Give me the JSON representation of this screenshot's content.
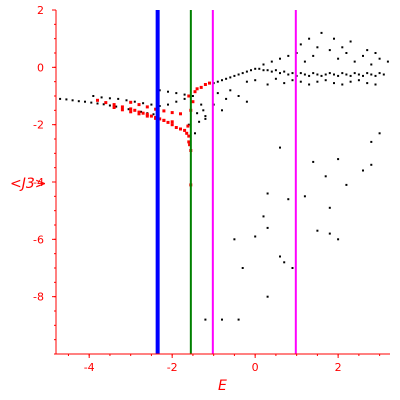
{
  "chart_data": {
    "type": "scatter",
    "xlabel": "E",
    "ylabel": "<J3>",
    "xlim": [
      -4.8,
      3.25
    ],
    "ylim": [
      -10.0,
      2.0
    ],
    "x_ticks": [
      -4,
      -2,
      0,
      2
    ],
    "y_ticks": [
      2,
      0,
      -2,
      -4,
      -6,
      -8
    ],
    "grid": false,
    "colors": {
      "axes": "#ff0000",
      "black_points": "#000000",
      "red_points": "#ff0000",
      "line_blue": "#0000ff",
      "line_green": "#008000",
      "line_magenta": "#ff00ff"
    },
    "vertical_lines": [
      {
        "x": -2.35,
        "color": "#0000ff"
      },
      {
        "x": -1.55,
        "color": "#008000"
      },
      {
        "x": -1.02,
        "color": "#ff00ff"
      },
      {
        "x": 0.98,
        "color": "#ff00ff"
      }
    ],
    "series": [
      {
        "points": [
          [
            -4.7,
            -1.1
          ],
          [
            -4.55,
            -1.12
          ],
          [
            -4.4,
            -1.15
          ],
          [
            -4.25,
            -1.18
          ],
          [
            -4.1,
            -1.2
          ],
          [
            -3.95,
            -1.23
          ],
          [
            -3.8,
            -1.26
          ],
          [
            -3.65,
            -1.29
          ],
          [
            -3.5,
            -1.33
          ],
          [
            -3.35,
            -1.37
          ],
          [
            -3.2,
            -1.41
          ],
          [
            -3.05,
            -1.46
          ],
          [
            -2.9,
            -1.5
          ],
          [
            -2.75,
            -1.55
          ],
          [
            -2.6,
            -1.6
          ],
          [
            -2.45,
            -1.64
          ],
          [
            -3.9,
            -1.0
          ],
          [
            -3.7,
            -1.05
          ],
          [
            -3.5,
            -1.08
          ],
          [
            -3.3,
            -1.1
          ],
          [
            -3.1,
            -1.15
          ],
          [
            -2.9,
            -1.2
          ],
          [
            -2.7,
            -1.25
          ],
          [
            -2.5,
            -1.3
          ],
          [
            -2.3,
            -1.35
          ],
          [
            -2.1,
            -1.3
          ],
          [
            -1.9,
            -1.2
          ],
          [
            -1.7,
            -1.1
          ],
          [
            -1.5,
            -1.0
          ],
          [
            -2.3,
            -0.8
          ],
          [
            -2.1,
            -0.85
          ],
          [
            -1.9,
            -0.9
          ],
          [
            -1.7,
            -0.95
          ],
          [
            -1.3,
            -1.3
          ],
          [
            -1.4,
            -1.6
          ],
          [
            -1.2,
            -1.8
          ],
          [
            -1.6,
            -2.0
          ],
          [
            -1.45,
            -2.3
          ],
          [
            -1.35,
            -1.9
          ],
          [
            -1.25,
            -1.5
          ],
          [
            -1.0,
            -0.55
          ],
          [
            -0.9,
            -0.5
          ],
          [
            -0.8,
            -0.45
          ],
          [
            -0.7,
            -0.4
          ],
          [
            -0.6,
            -0.35
          ],
          [
            -0.5,
            -0.3
          ],
          [
            -0.4,
            -0.25
          ],
          [
            -0.3,
            -0.2
          ],
          [
            -0.2,
            -0.15
          ],
          [
            -0.1,
            -0.1
          ],
          [
            0.0,
            -0.05
          ],
          [
            0.1,
            -0.05
          ],
          [
            0.2,
            -0.1
          ],
          [
            0.3,
            -0.1
          ],
          [
            0.4,
            -0.15
          ],
          [
            0.5,
            -0.1
          ],
          [
            0.6,
            -0.2
          ],
          [
            0.7,
            -0.15
          ],
          [
            0.8,
            -0.25
          ],
          [
            0.9,
            -0.2
          ],
          [
            1.0,
            -0.3
          ],
          [
            1.1,
            -0.2
          ],
          [
            1.2,
            -0.25
          ],
          [
            1.3,
            -0.3
          ],
          [
            1.4,
            -0.2
          ],
          [
            1.5,
            -0.25
          ],
          [
            1.6,
            -0.3
          ],
          [
            1.7,
            -0.25
          ],
          [
            1.8,
            -0.2
          ],
          [
            1.9,
            -0.25
          ],
          [
            2.0,
            -0.3
          ],
          [
            2.1,
            -0.2
          ],
          [
            2.2,
            -0.25
          ],
          [
            2.3,
            -0.3
          ],
          [
            2.4,
            -0.2
          ],
          [
            2.5,
            -0.25
          ],
          [
            2.6,
            -0.3
          ],
          [
            2.7,
            -0.2
          ],
          [
            2.8,
            -0.25
          ],
          [
            2.9,
            -0.3
          ],
          [
            3.0,
            -0.2
          ],
          [
            3.1,
            -0.25
          ],
          [
            -0.2,
            -0.5
          ],
          [
            0.0,
            -0.45
          ],
          [
            0.3,
            -0.6
          ],
          [
            0.5,
            -0.4
          ],
          [
            0.7,
            -0.55
          ],
          [
            0.9,
            -0.45
          ],
          [
            1.1,
            -0.5
          ],
          [
            1.3,
            -0.6
          ],
          [
            1.5,
            -0.5
          ],
          [
            1.7,
            -0.45
          ],
          [
            1.9,
            -0.55
          ],
          [
            2.1,
            -0.6
          ],
          [
            2.3,
            -0.5
          ],
          [
            2.5,
            -0.45
          ],
          [
            2.7,
            -0.55
          ],
          [
            2.9,
            -0.6
          ],
          [
            0.2,
            0.1
          ],
          [
            0.4,
            0.2
          ],
          [
            0.6,
            0.3
          ],
          [
            0.8,
            0.4
          ],
          [
            1.0,
            0.5
          ],
          [
            1.1,
            0.8
          ],
          [
            1.3,
            1.0
          ],
          [
            1.5,
            0.7
          ],
          [
            1.6,
            1.2
          ],
          [
            1.2,
            0.2
          ],
          [
            1.4,
            0.4
          ],
          [
            1.8,
            0.6
          ],
          [
            2.0,
            0.3
          ],
          [
            2.2,
            0.5
          ],
          [
            2.4,
            0.2
          ],
          [
            2.6,
            0.4
          ],
          [
            2.8,
            0.1
          ],
          [
            3.0,
            0.3
          ],
          [
            3.2,
            0.2
          ],
          [
            2.3,
            0.9
          ],
          [
            2.1,
            0.7
          ],
          [
            1.9,
            1.0
          ],
          [
            2.7,
            0.6
          ],
          [
            2.9,
            0.5
          ],
          [
            -0.9,
            -0.9
          ],
          [
            -0.7,
            -1.1
          ],
          [
            -0.6,
            -0.8
          ],
          [
            -0.4,
            -1.0
          ],
          [
            -0.2,
            -1.2
          ],
          [
            -1.0,
            -1.3
          ],
          [
            -0.8,
            -1.5
          ],
          [
            -1.2,
            -1.7
          ],
          [
            0.6,
            -2.8
          ],
          [
            1.4,
            -3.3
          ],
          [
            1.7,
            -3.8
          ],
          [
            2.0,
            -3.2
          ],
          [
            2.2,
            -4.1
          ],
          [
            2.6,
            -3.6
          ],
          [
            2.8,
            -3.4
          ],
          [
            0.3,
            -4.4
          ],
          [
            0.8,
            -4.6
          ],
          [
            1.2,
            -4.5
          ],
          [
            0.2,
            -5.2
          ],
          [
            0.3,
            -5.6
          ],
          [
            0.0,
            -5.9
          ],
          [
            -0.5,
            -6.0
          ],
          [
            0.6,
            -6.6
          ],
          [
            1.5,
            -5.7
          ],
          [
            1.8,
            -5.8
          ],
          [
            2.0,
            -6.0
          ],
          [
            -0.3,
            -7.0
          ],
          [
            0.9,
            -7.0
          ],
          [
            0.7,
            -6.8
          ],
          [
            -0.8,
            -8.8
          ],
          [
            -0.4,
            -8.8
          ],
          [
            -1.2,
            -8.8
          ],
          [
            0.3,
            -8.0
          ],
          [
            1.8,
            -4.9
          ],
          [
            2.8,
            -2.6
          ],
          [
            3.0,
            -2.3
          ]
        ]
      },
      {
        "points": [
          [
            -3.8,
            -1.15
          ],
          [
            -3.6,
            -1.23
          ],
          [
            -3.4,
            -1.3
          ],
          [
            -3.2,
            -1.38
          ],
          [
            -3.0,
            -1.45
          ],
          [
            -2.9,
            -1.5
          ],
          [
            -2.8,
            -1.56
          ],
          [
            -2.7,
            -1.6
          ],
          [
            -2.6,
            -1.64
          ],
          [
            -2.5,
            -1.7
          ],
          [
            -2.4,
            -1.75
          ],
          [
            -2.3,
            -1.8
          ],
          [
            -2.2,
            -1.85
          ],
          [
            -2.1,
            -1.92
          ],
          [
            -2.0,
            -2.0
          ],
          [
            -1.9,
            -2.1
          ],
          [
            -1.8,
            -2.15
          ],
          [
            -1.7,
            -2.2
          ],
          [
            -1.65,
            -2.3
          ],
          [
            -1.6,
            -2.4
          ],
          [
            -3.4,
            -1.4
          ],
          [
            -3.2,
            -1.48
          ],
          [
            -3.0,
            -1.55
          ],
          [
            -2.8,
            -1.62
          ],
          [
            -2.6,
            -1.7
          ],
          [
            -2.4,
            -1.78
          ],
          [
            -2.2,
            -1.85
          ],
          [
            -2.0,
            -1.9
          ],
          [
            -3.0,
            -1.22
          ],
          [
            -2.8,
            -1.3
          ],
          [
            -2.6,
            -1.38
          ],
          [
            -2.4,
            -1.46
          ],
          [
            -2.2,
            -1.52
          ],
          [
            -2.0,
            -1.58
          ],
          [
            -1.8,
            -1.62
          ],
          [
            -1.6,
            -1.0
          ],
          [
            -1.5,
            -1.2
          ],
          [
            -1.45,
            -0.85
          ],
          [
            -1.4,
            -0.75
          ],
          [
            -1.3,
            -0.7
          ],
          [
            -1.2,
            -0.6
          ],
          [
            -1.1,
            -0.55
          ],
          [
            -1.55,
            -1.5
          ],
          [
            -1.6,
            -2.6
          ],
          [
            -1.55,
            -2.9
          ],
          [
            -1.58,
            -2.7
          ],
          [
            -1.55,
            -4.1
          ],
          [
            -1.62,
            -2.05
          ]
        ]
      }
    ]
  }
}
